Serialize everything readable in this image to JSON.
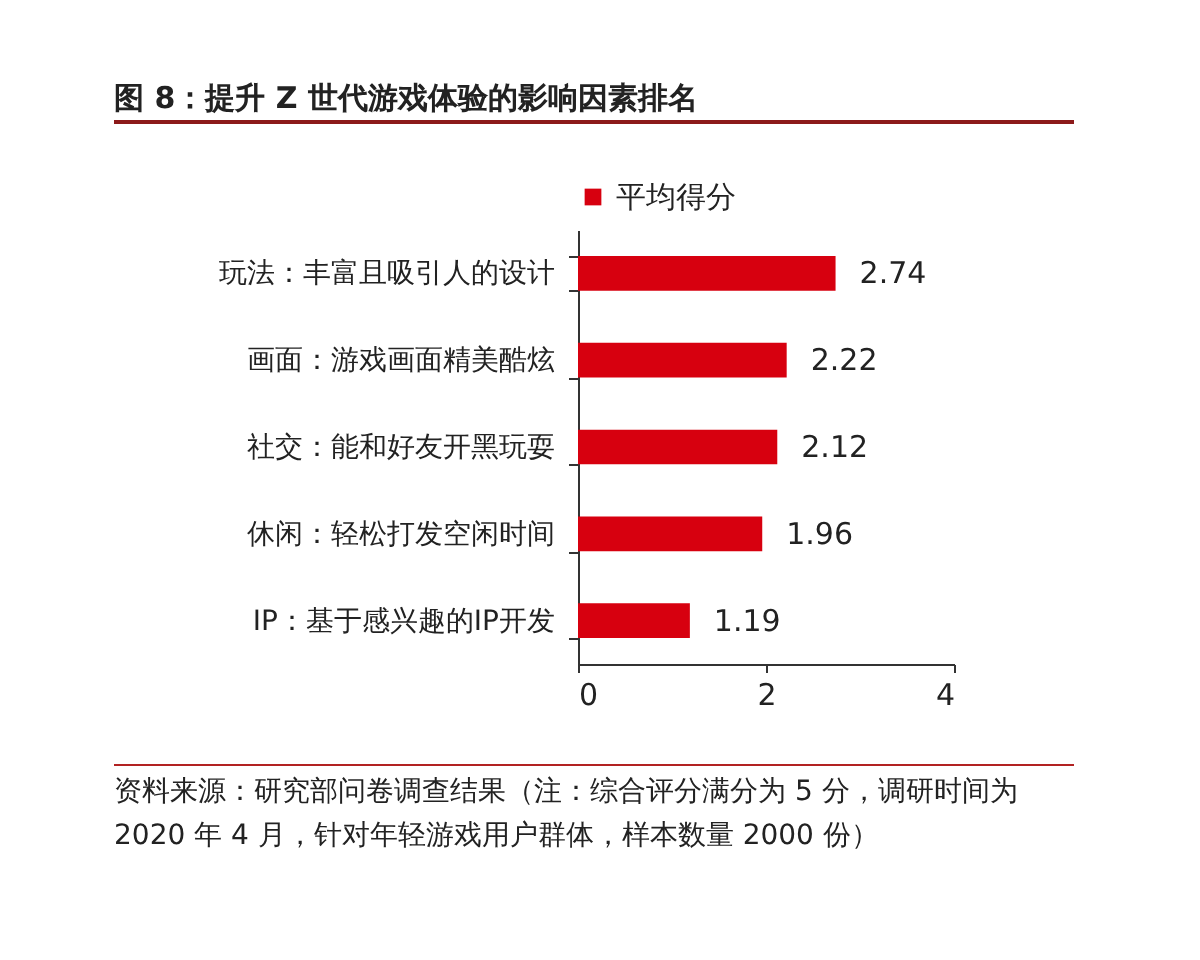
{
  "chart_data": {
    "type": "bar",
    "title": "图 8：提升 Z 世代游戏体验的影响因素排名",
    "categories": [
      "玩法：丰富且吸引人的设计",
      "画面：游戏画面精美酷炫",
      "社交：能和好友开黑玩耍",
      "休闲：轻松打发空闲时间",
      "IP：基于感兴趣的IP开发"
    ],
    "series": [
      {
        "name": "平均得分",
        "color": "#d7000f",
        "values": [
          2.74,
          2.22,
          2.12,
          1.96,
          1.19
        ]
      }
    ],
    "orientation": "horizontal",
    "xlim": [
      0,
      4
    ],
    "xticks": [
      0,
      2,
      4
    ],
    "data_labels": true,
    "legend": "top",
    "annotations": [
      "资料来源：研究部问卷调查结果（注：综合评分满分为 5 分，调研时间为 2020 年 4 月，针对年轻游戏用户群体，样本数量 2000 份）"
    ]
  }
}
